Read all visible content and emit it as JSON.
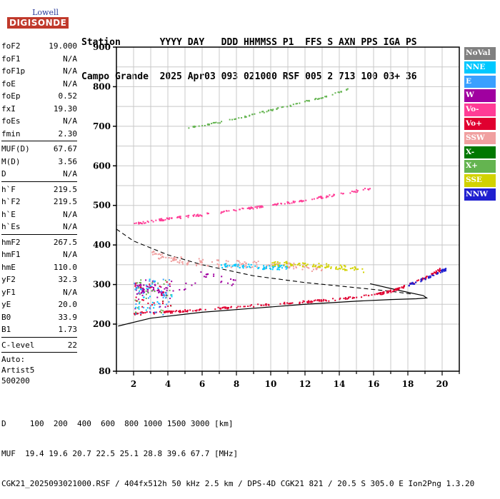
{
  "logo": {
    "line1": "Lowell",
    "line2": "DIGISONDE"
  },
  "header": {
    "line1": "Station       YYYY DAY   DDD HHMMSS P1  FFS S AXN PPS IGA PS",
    "line2": "Campo Grande  2025 Apr03 093 021000 RSF 005 2 713 100 03+ 36"
  },
  "params": {
    "group1": [
      {
        "label": "foF2",
        "value": "19.000"
      },
      {
        "label": "foF1",
        "value": "N/A"
      },
      {
        "label": "foF1p",
        "value": "N/A"
      },
      {
        "label": "foE",
        "value": "N/A"
      },
      {
        "label": "foEp",
        "value": "0.52"
      },
      {
        "label": "fxI",
        "value": "19.30"
      },
      {
        "label": "foEs",
        "value": "N/A"
      },
      {
        "label": "fmin",
        "value": "2.30"
      }
    ],
    "group2": [
      {
        "label": "MUF(D)",
        "value": "67.67"
      },
      {
        "label": "M(D)",
        "value": "3.56"
      },
      {
        "label": "D",
        "value": "N/A"
      }
    ],
    "group3": [
      {
        "label": "h`F",
        "value": "219.5"
      },
      {
        "label": "h`F2",
        "value": "219.5"
      },
      {
        "label": "h`E",
        "value": "N/A"
      },
      {
        "label": "h`Es",
        "value": "N/A"
      }
    ],
    "group4": [
      {
        "label": "hmF2",
        "value": "267.5"
      },
      {
        "label": "hmF1",
        "value": "N/A"
      },
      {
        "label": "hmE",
        "value": "110.0"
      },
      {
        "label": "yF2",
        "value": "32.3"
      },
      {
        "label": "yF1",
        "value": "N/A"
      },
      {
        "label": "yE",
        "value": "20.0"
      },
      {
        "label": "B0",
        "value": "33.9"
      },
      {
        "label": "B1",
        "value": "1.73"
      }
    ],
    "group5": [
      {
        "label": "C-level",
        "value": "22"
      }
    ],
    "auto": [
      "Auto:",
      "Artist5",
      "500200"
    ]
  },
  "legend": [
    {
      "label": "NoVal",
      "color": "#808080"
    },
    {
      "label": "NNE",
      "color": "#00c8ff"
    },
    {
      "label": "E",
      "color": "#3aa0ff"
    },
    {
      "label": "W",
      "color": "#a000a0"
    },
    {
      "label": "Vo-",
      "color": "#ff3c96"
    },
    {
      "label": "Vo+",
      "color": "#e00030"
    },
    {
      "label": "SSW",
      "color": "#f0a0a0"
    },
    {
      "label": "X-",
      "color": "#007800"
    },
    {
      "label": "X+",
      "color": "#64b450"
    },
    {
      "label": "SSE",
      "color": "#d2d200"
    },
    {
      "label": "NNW",
      "color": "#2020d0"
    }
  ],
  "footer": {
    "line1": "D     100  200  400  600  800 1000 1500 3000 [km]",
    "line2": "MUF  19.4 19.6 20.7 22.5 25.1 28.8 39.6 67.7 [MHz]",
    "line3": "CGK21_2025093021000.RSF / 404fx512h 50 kHz 2.5 km / DPS-4D CGK21 821 / 20.5 S 305.0 E Ion2Png 1.3.20"
  },
  "chart_data": {
    "type": "scatter",
    "xlabel": "",
    "ylabel": "",
    "xlim": [
      1,
      21
    ],
    "ylim": [
      80,
      900
    ],
    "x_ticks": [
      2,
      4,
      6,
      8,
      10,
      12,
      14,
      16,
      18,
      20
    ],
    "y_ticks": [
      80,
      200,
      300,
      400,
      500,
      600,
      700,
      800,
      900
    ],
    "grid": true,
    "legend_position": "right",
    "traces": [
      {
        "name": "Vo+",
        "points": [
          [
            2,
            228
          ],
          [
            4,
            232
          ],
          [
            6,
            238
          ],
          [
            8,
            245
          ],
          [
            10,
            252
          ],
          [
            12,
            258
          ],
          [
            14,
            265
          ],
          [
            16,
            275
          ],
          [
            17,
            285
          ],
          [
            18,
            300
          ],
          [
            19,
            318
          ],
          [
            19.9,
            340
          ]
        ]
      },
      {
        "name": "NNW",
        "points": [
          [
            18,
            300
          ],
          [
            18.7,
            312
          ],
          [
            19.3,
            322
          ],
          [
            19.9,
            335
          ],
          [
            20.2,
            340
          ]
        ]
      },
      {
        "name": "Vo-",
        "points": [
          [
            2,
            455
          ],
          [
            4,
            468
          ],
          [
            6,
            478
          ],
          [
            8,
            490
          ],
          [
            10,
            502
          ],
          [
            12,
            515
          ],
          [
            14,
            530
          ],
          [
            15.8,
            545
          ]
        ]
      },
      {
        "name": "X+",
        "points": [
          [
            5.2,
            698
          ],
          [
            7,
            712
          ],
          [
            9,
            732
          ],
          [
            11,
            753
          ],
          [
            13,
            775
          ],
          [
            14.5,
            796
          ]
        ]
      },
      {
        "name": "SSW",
        "points": [
          [
            3,
            380
          ],
          [
            5,
            360
          ],
          [
            7,
            355
          ],
          [
            9,
            352
          ],
          [
            11,
            348
          ],
          [
            13,
            340
          ]
        ]
      },
      {
        "name": "NNE",
        "points": [
          [
            7,
            350
          ],
          [
            9,
            347
          ],
          [
            10,
            344
          ],
          [
            11,
            346
          ]
        ]
      },
      {
        "name": "SSE",
        "points": [
          [
            10,
            355
          ],
          [
            12,
            352
          ],
          [
            14,
            345
          ],
          [
            15.5,
            338
          ]
        ]
      },
      {
        "name": "W",
        "points": [
          [
            2,
            300
          ],
          [
            2.5,
            285
          ],
          [
            3,
            292
          ],
          [
            4,
            270
          ],
          [
            6,
            326
          ],
          [
            8,
            305
          ]
        ]
      }
    ],
    "profile_curve": [
      [
        1.1,
        195
      ],
      [
        3,
        215
      ],
      [
        6,
        230
      ],
      [
        9,
        240
      ],
      [
        12,
        250
      ],
      [
        15,
        258
      ],
      [
        17,
        262
      ],
      [
        18.5,
        264
      ],
      [
        19.1,
        266
      ],
      [
        18.9,
        272
      ],
      [
        17.5,
        285
      ],
      [
        15.8,
        302
      ]
    ],
    "dashed_curve": [
      [
        1,
        440
      ],
      [
        2,
        410
      ],
      [
        4,
        375
      ],
      [
        6,
        350
      ],
      [
        9,
        322
      ],
      [
        12,
        305
      ],
      [
        15,
        292
      ],
      [
        17,
        283
      ],
      [
        18.2,
        276
      ]
    ]
  }
}
